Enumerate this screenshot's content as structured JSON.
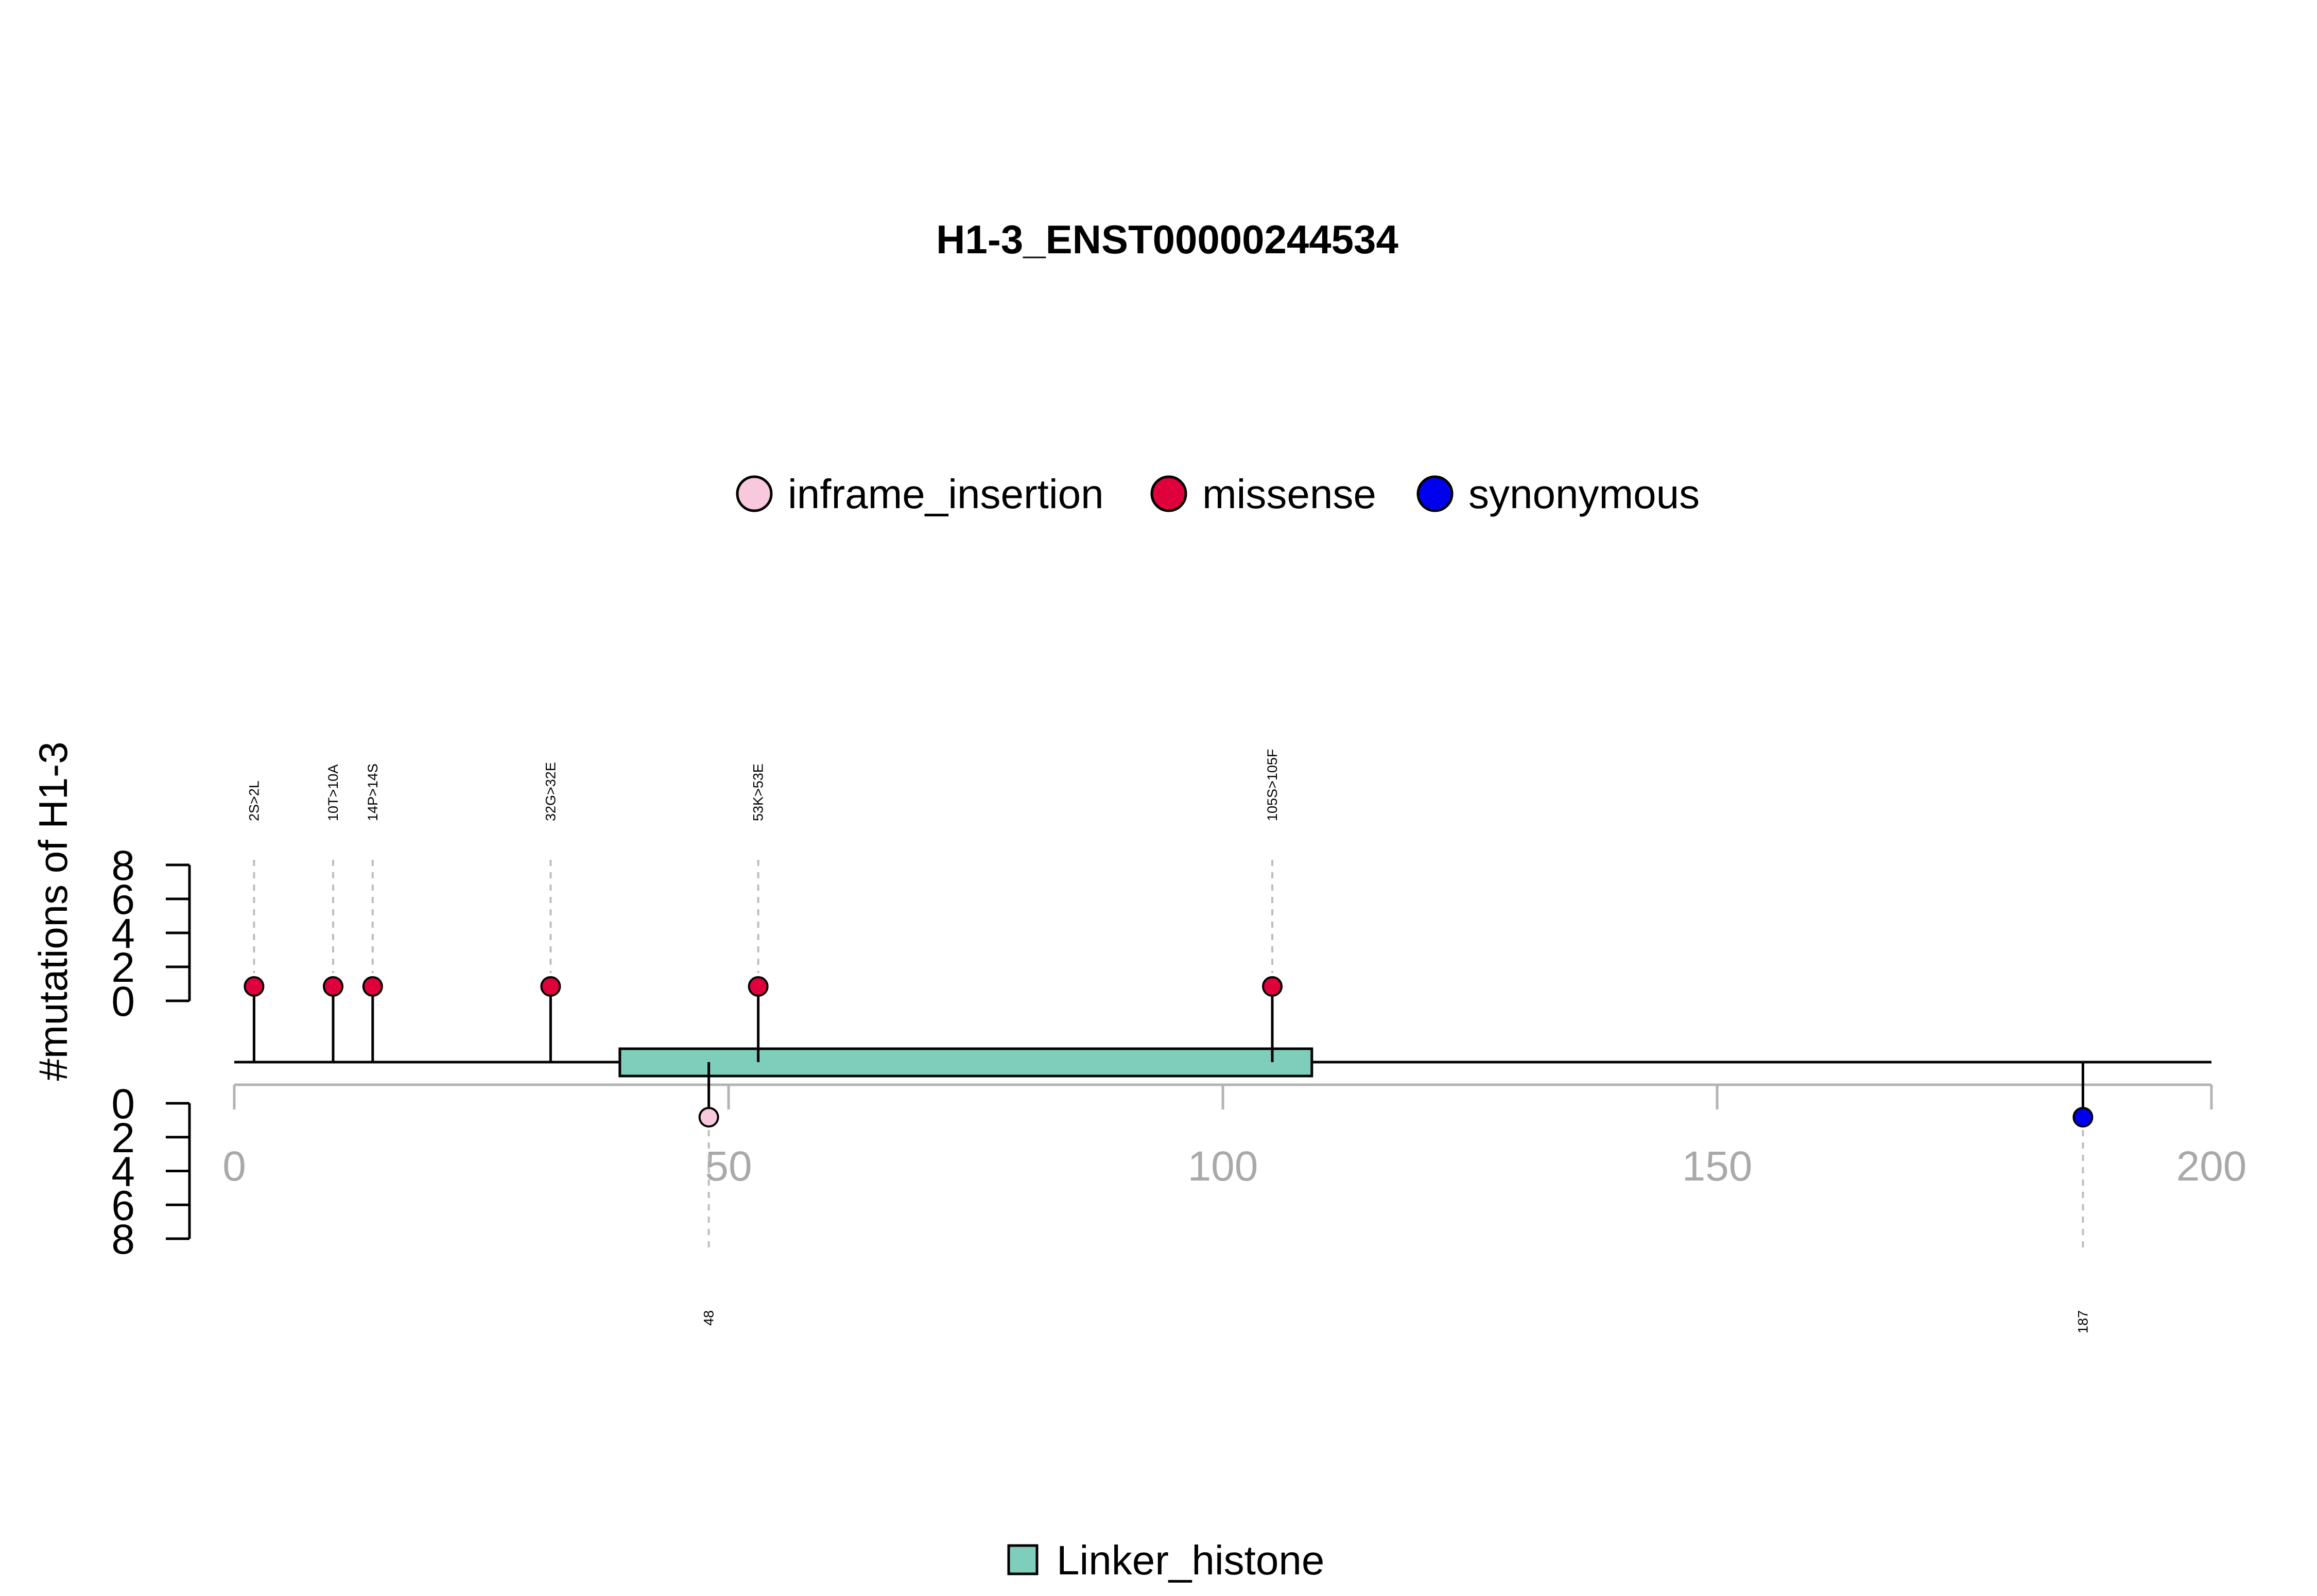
{
  "chart_data": {
    "type": "lollipop",
    "title": "H1-3_ENST00000244534",
    "ylabel": "#mutations of H1-3",
    "xlim": [
      0,
      200
    ],
    "xticks": [
      0,
      50,
      100,
      150,
      200
    ],
    "yticks_top": [
      0,
      2,
      4,
      6,
      8
    ],
    "yticks_bottom": [
      0,
      2,
      4,
      6,
      8
    ],
    "ylim": [
      0,
      8
    ],
    "legend": [
      {
        "name": "inframe_insertion",
        "color": "#F8C8DC"
      },
      {
        "name": "missense",
        "color": "#E0003C"
      },
      {
        "name": "synonymous",
        "color": "#0000EE"
      }
    ],
    "mutations_top": [
      {
        "pos": 2,
        "label": "2S>2L",
        "count": 1,
        "type": "missense"
      },
      {
        "pos": 10,
        "label": "10T>10A",
        "count": 1,
        "type": "missense"
      },
      {
        "pos": 14,
        "label": "14P>14S",
        "count": 1,
        "type": "missense"
      },
      {
        "pos": 32,
        "label": "32G>32E",
        "count": 1,
        "type": "missense"
      },
      {
        "pos": 53,
        "label": "53K>53E",
        "count": 1,
        "type": "missense"
      },
      {
        "pos": 105,
        "label": "105S>105F",
        "count": 1,
        "type": "missense"
      }
    ],
    "mutations_bottom": [
      {
        "pos": 48,
        "label": "48",
        "count": 1,
        "type": "inframe_insertion"
      },
      {
        "pos": 187,
        "label": "187",
        "count": 1,
        "type": "synonymous"
      }
    ],
    "domains": [
      {
        "name": "Linker_histone",
        "start": 39,
        "end": 109,
        "color": "#7FCDBB"
      }
    ],
    "domain_legend": [
      {
        "name": "Linker_histone",
        "color": "#7FCDBB"
      }
    ]
  }
}
